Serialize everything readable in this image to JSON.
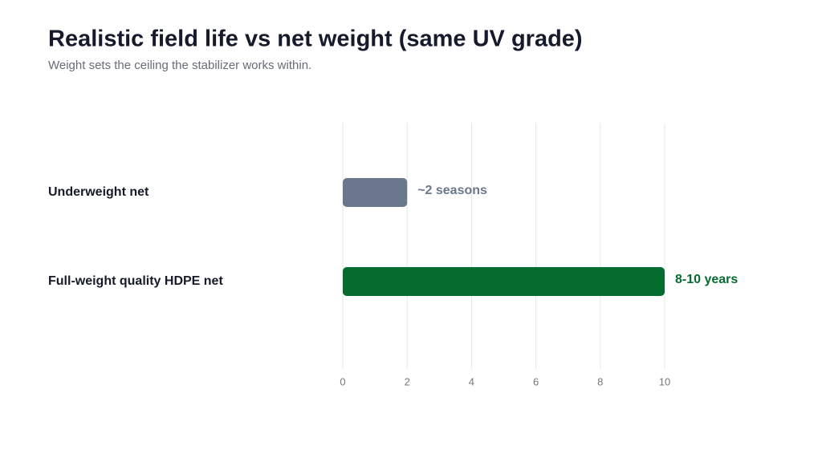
{
  "chart_data": {
    "type": "hbar",
    "title": "Realistic field life vs net weight (same UV grade)",
    "subtitle": "Weight sets the ceiling the stabilizer works within.",
    "categories": [
      "Underweight net",
      "Full-weight quality HDPE net"
    ],
    "values": [
      2,
      10
    ],
    "value_labels": [
      "~2 seasons",
      "8-10 years"
    ],
    "colors": [
      "#6b778c",
      "#046c2e"
    ],
    "xlim": [
      0,
      10
    ],
    "xticks": [
      0,
      2,
      4,
      6,
      8,
      10
    ],
    "grid": true
  }
}
